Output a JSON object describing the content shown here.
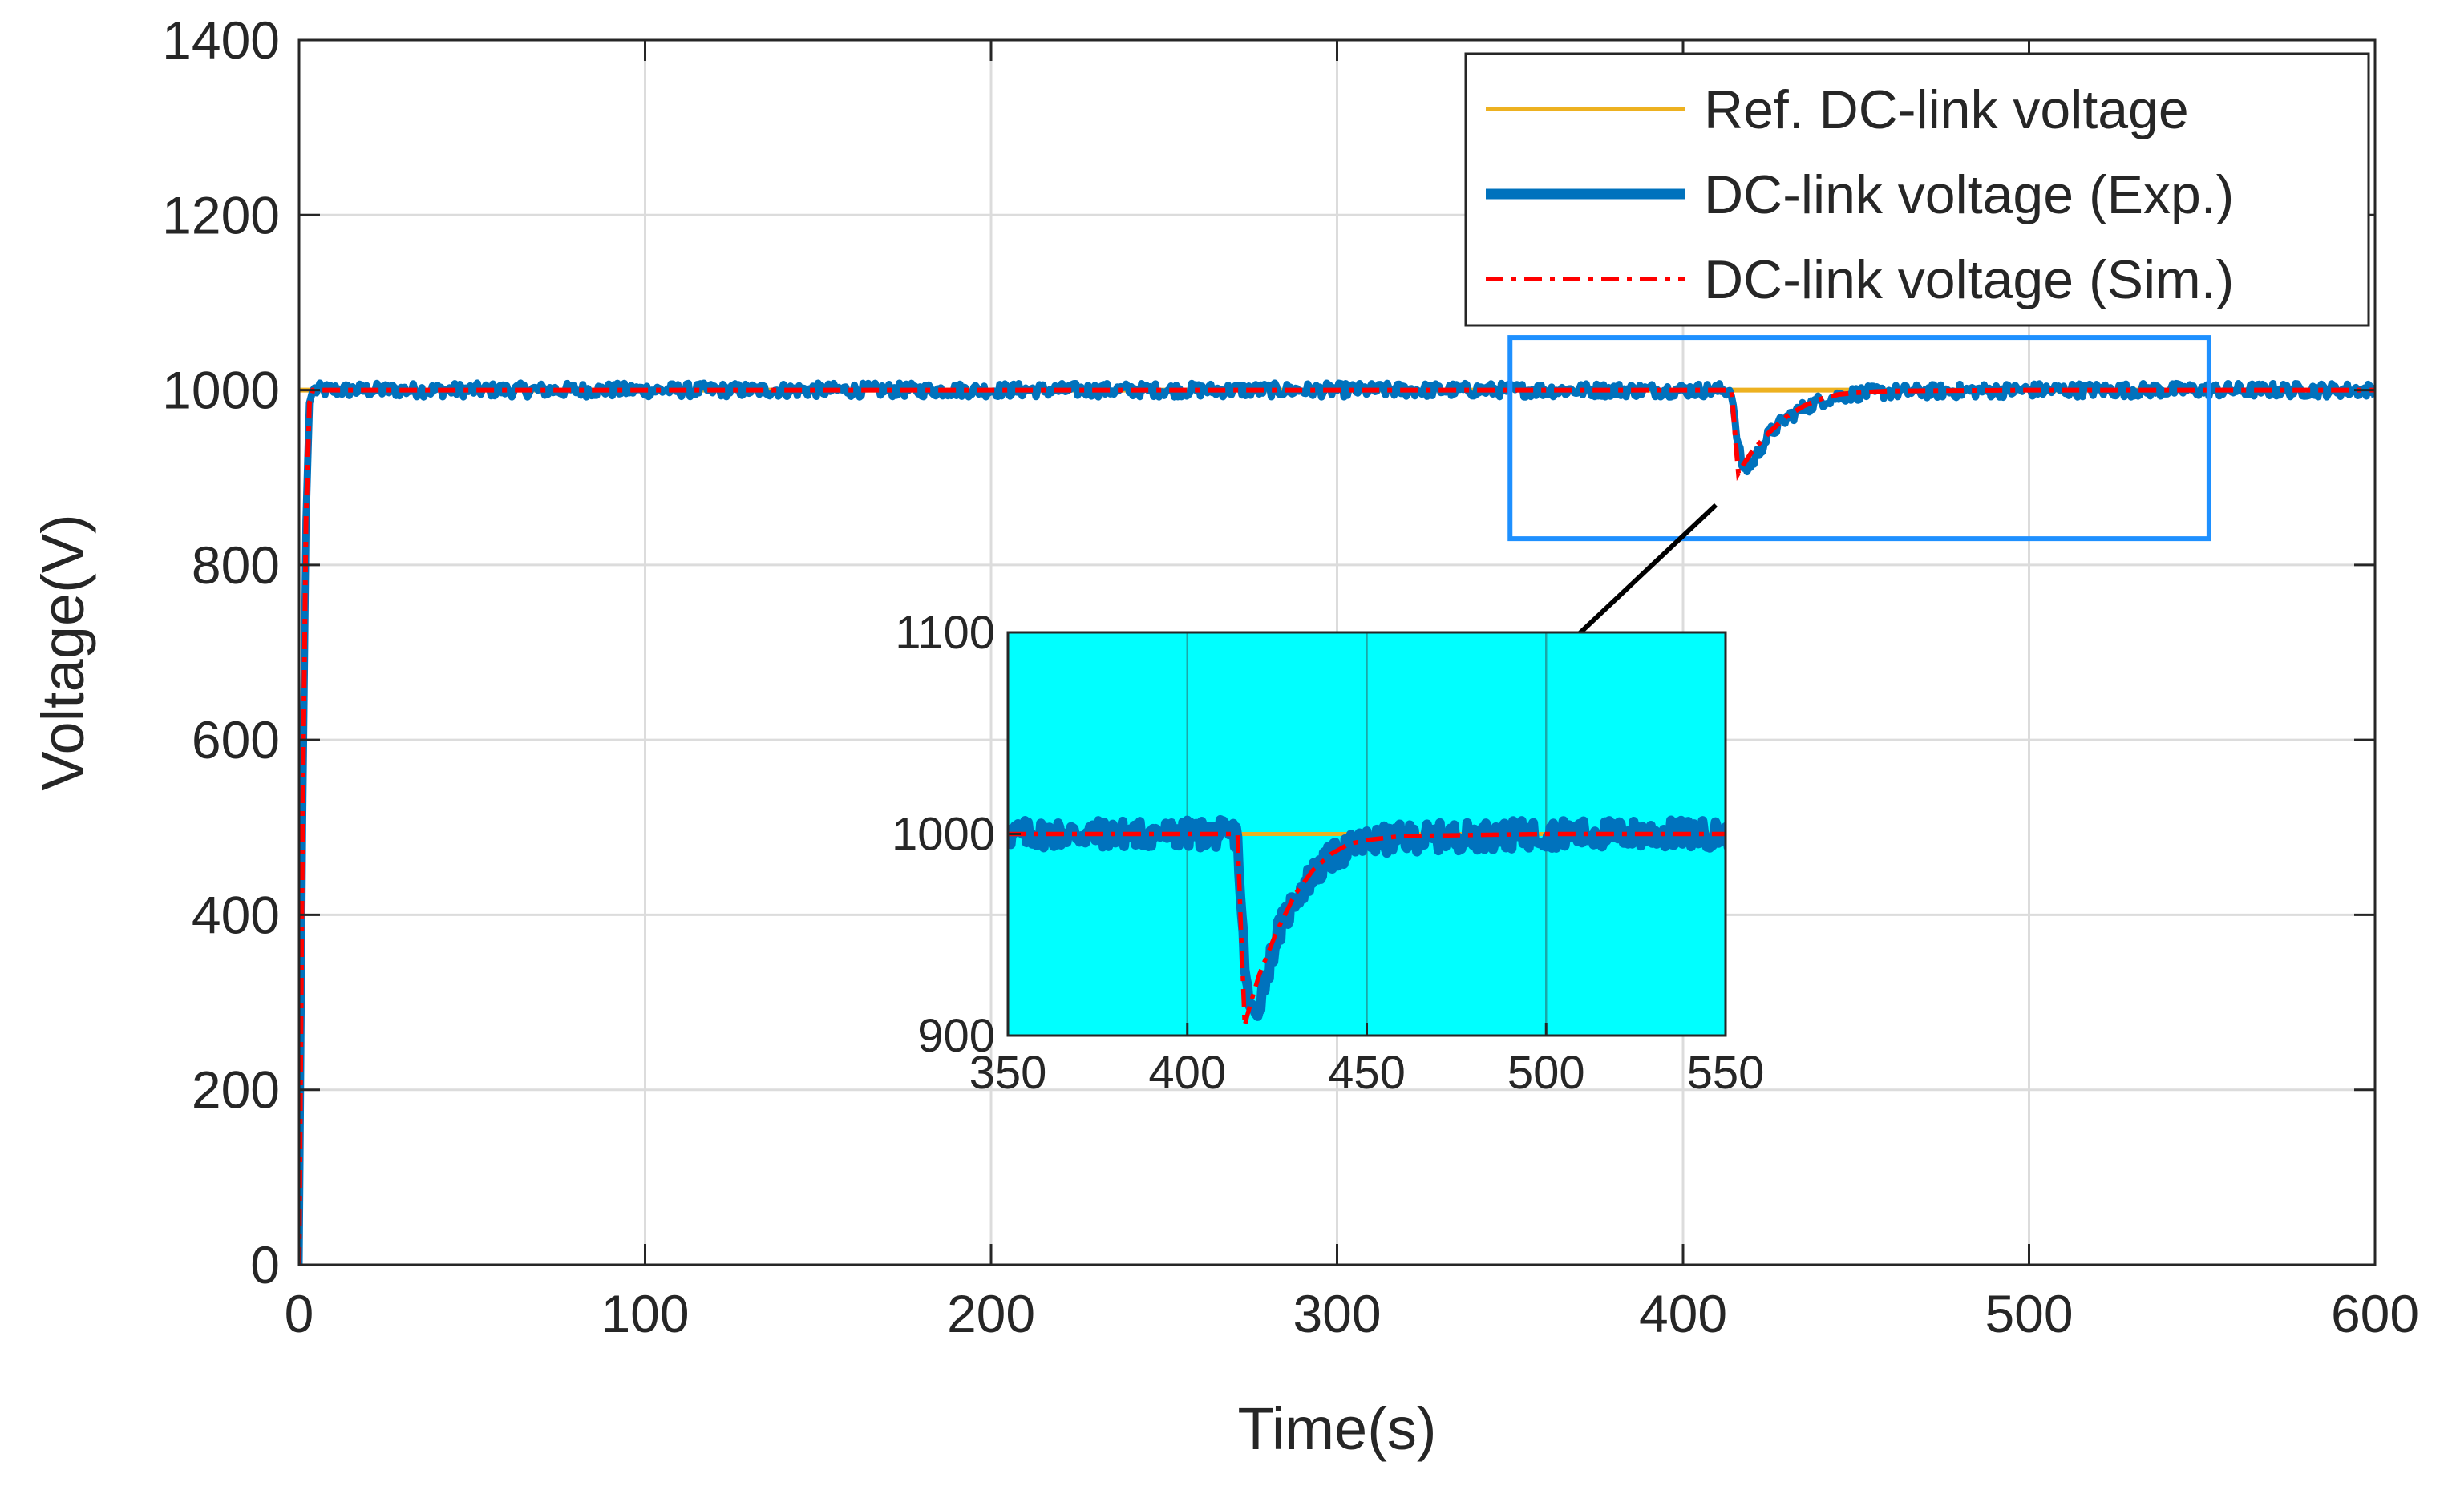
{
  "chart_data": [
    {
      "type": "line",
      "title": "",
      "xlabel": "Time(s)",
      "ylabel": "Voltage(V)",
      "xlim": [
        0,
        600
      ],
      "ylim": [
        0,
        1400
      ],
      "xticks": [
        0,
        100,
        200,
        300,
        400,
        500,
        600
      ],
      "xtick_labels": [
        "0",
        "100",
        "200",
        "300",
        "400",
        "500",
        "600"
      ],
      "yticks": [
        0,
        200,
        400,
        600,
        800,
        1000,
        1200,
        1400
      ],
      "ytick_labels": [
        "0",
        "200",
        "400",
        "600",
        "800",
        "1000",
        "1200",
        "1400"
      ],
      "grid": true,
      "legend_position": "top-right",
      "series": [
        {
          "name": "Ref. DC-link voltage",
          "color": "#EDB120",
          "style": "solid",
          "x": [
            0,
            600
          ],
          "y": [
            1000,
            1000
          ]
        },
        {
          "name": "DC-link voltage (Exp.)",
          "color": "#0072BD",
          "style": "thick-noisy",
          "x": [
            0,
            1,
            2,
            3,
            4,
            10,
            50,
            100,
            150,
            200,
            250,
            300,
            350,
            400,
            414,
            415,
            417,
            419,
            422,
            425,
            430,
            435,
            440,
            445,
            450,
            460,
            500,
            550,
            600
          ],
          "y": [
            0,
            500,
            850,
            985,
            1000,
            1000,
            1000,
            1000,
            1000,
            1000,
            1000,
            1000,
            1000,
            1000,
            1000,
            960,
            915,
            910,
            930,
            950,
            968,
            980,
            988,
            993,
            996,
            998,
            1000,
            1000,
            1000
          ]
        },
        {
          "name": "DC-link voltage (Sim.)",
          "color": "#FF0000",
          "style": "dash-dot",
          "x": [
            0,
            1,
            2,
            3,
            4,
            10,
            100,
            200,
            300,
            400,
            414,
            415,
            416,
            417,
            420,
            425,
            430,
            435,
            440,
            445,
            450,
            460,
            500,
            550,
            600
          ],
          "y": [
            0,
            500,
            850,
            985,
            1000,
            1000,
            1000,
            1000,
            1000,
            1000,
            1000,
            950,
            905,
            912,
            930,
            952,
            970,
            982,
            990,
            995,
            997,
            999,
            1000,
            1000,
            1000
          ]
        }
      ]
    },
    {
      "type": "line",
      "role": "inset-zoom",
      "title": "",
      "xlim": [
        350,
        550
      ],
      "ylim": [
        900,
        1100
      ],
      "xticks": [
        350,
        400,
        450,
        500,
        550
      ],
      "xtick_labels": [
        "350",
        "400",
        "450",
        "500",
        "550"
      ],
      "yticks": [
        900,
        1000,
        1100
      ],
      "ytick_labels": [
        "900",
        "1000",
        "1100"
      ],
      "grid": true,
      "background": "#00FFFF",
      "zoom_box_color": "#1E90FF",
      "zoom_region": {
        "x": [
          350,
          552
        ],
        "y": [
          830,
          1060
        ]
      }
    }
  ]
}
